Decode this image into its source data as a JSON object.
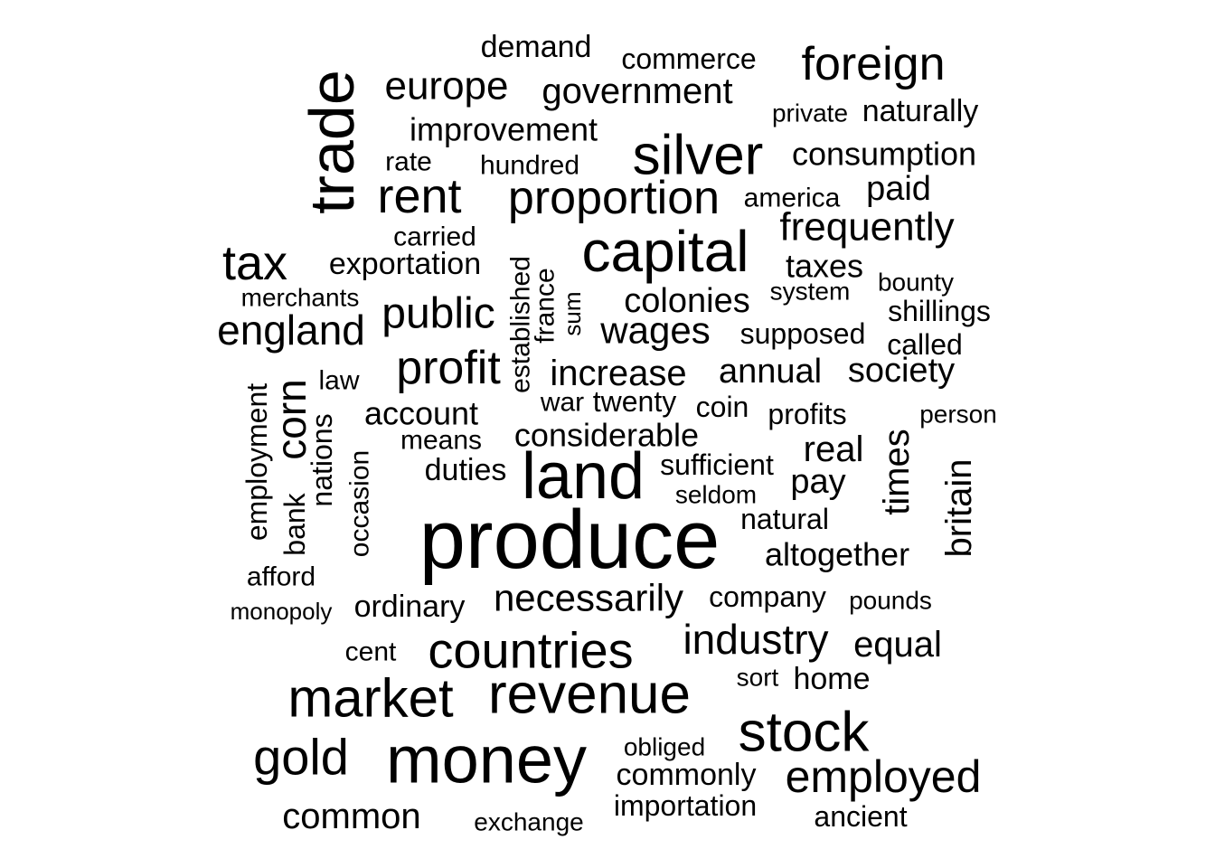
{
  "words": [
    {
      "text": "produce",
      "size": 92
    },
    {
      "text": "money",
      "size": 74
    },
    {
      "text": "land",
      "size": 72
    },
    {
      "text": "trade",
      "size": 70,
      "vertical": true
    },
    {
      "text": "capital",
      "size": 64
    },
    {
      "text": "revenue",
      "size": 62
    },
    {
      "text": "silver",
      "size": 62
    },
    {
      "text": "stock",
      "size": 62
    },
    {
      "text": "market",
      "size": 60
    },
    {
      "text": "countries",
      "size": 56
    },
    {
      "text": "gold",
      "size": 56
    },
    {
      "text": "tax",
      "size": 54
    },
    {
      "text": "rent",
      "size": 54
    },
    {
      "text": "proportion",
      "size": 52
    },
    {
      "text": "profit",
      "size": 52
    },
    {
      "text": "foreign",
      "size": 52
    },
    {
      "text": "employed",
      "size": 50
    },
    {
      "text": "public",
      "size": 48
    },
    {
      "text": "corn",
      "size": 46,
      "vertical": true
    },
    {
      "text": "england",
      "size": 46
    },
    {
      "text": "industry",
      "size": 46
    },
    {
      "text": "europe",
      "size": 44
    },
    {
      "text": "frequently",
      "size": 44
    },
    {
      "text": "necessarily",
      "size": 42
    },
    {
      "text": "wages",
      "size": 42
    },
    {
      "text": "government",
      "size": 40
    },
    {
      "text": "increase",
      "size": 40
    },
    {
      "text": "britain",
      "size": 40,
      "vertical": true
    },
    {
      "text": "times",
      "size": 40,
      "vertical": true
    },
    {
      "text": "real",
      "size": 40
    },
    {
      "text": "common",
      "size": 40
    },
    {
      "text": "equal",
      "size": 40
    },
    {
      "text": "society",
      "size": 38
    },
    {
      "text": "colonies",
      "size": 38
    },
    {
      "text": "annual",
      "size": 38
    },
    {
      "text": "improvement",
      "size": 36
    },
    {
      "text": "account",
      "size": 36
    },
    {
      "text": "considerable",
      "size": 36
    },
    {
      "text": "paid",
      "size": 38
    },
    {
      "text": "pay",
      "size": 38
    },
    {
      "text": "altogether",
      "size": 36
    },
    {
      "text": "consumption",
      "size": 36
    },
    {
      "text": "taxes",
      "size": 36
    },
    {
      "text": "exportation",
      "size": 34
    },
    {
      "text": "duties",
      "size": 34
    },
    {
      "text": "demand",
      "size": 34
    },
    {
      "text": "ordinary",
      "size": 34
    },
    {
      "text": "home",
      "size": 34
    },
    {
      "text": "naturally",
      "size": 34
    },
    {
      "text": "commonly",
      "size": 34
    },
    {
      "text": "employment",
      "size": 32,
      "vertical": true
    },
    {
      "text": "nations",
      "size": 32,
      "vertical": true
    },
    {
      "text": "bank",
      "size": 32,
      "vertical": true
    },
    {
      "text": "occasion",
      "size": 30,
      "vertical": true
    },
    {
      "text": "established",
      "size": 30,
      "vertical": true
    },
    {
      "text": "france",
      "size": 30,
      "vertical": true
    },
    {
      "text": "commerce",
      "size": 32
    },
    {
      "text": "supposed",
      "size": 32
    },
    {
      "text": "profits",
      "size": 32
    },
    {
      "text": "coin",
      "size": 32
    },
    {
      "text": "twenty",
      "size": 32
    },
    {
      "text": "sufficient",
      "size": 32
    },
    {
      "text": "natural",
      "size": 32
    },
    {
      "text": "company",
      "size": 32
    },
    {
      "text": "importation",
      "size": 32
    },
    {
      "text": "shillings",
      "size": 32
    },
    {
      "text": "called",
      "size": 32
    },
    {
      "text": "cent",
      "size": 30
    },
    {
      "text": "carried",
      "size": 30
    },
    {
      "text": "hundred",
      "size": 30
    },
    {
      "text": "afford",
      "size": 30
    },
    {
      "text": "means",
      "size": 30
    },
    {
      "text": "rate",
      "size": 30
    },
    {
      "text": "america",
      "size": 30
    },
    {
      "text": "law",
      "size": 30
    },
    {
      "text": "war",
      "size": 30
    },
    {
      "text": "obliged",
      "size": 28
    },
    {
      "text": "merchants",
      "size": 28
    },
    {
      "text": "seldom",
      "size": 28
    },
    {
      "text": "exchange",
      "size": 28
    },
    {
      "text": "pounds",
      "size": 28
    },
    {
      "text": "private",
      "size": 28
    },
    {
      "text": "sort",
      "size": 28
    },
    {
      "text": "ancient",
      "size": 32
    },
    {
      "text": "system",
      "size": 28
    },
    {
      "text": "bounty",
      "size": 28
    },
    {
      "text": "person",
      "size": 28
    },
    {
      "text": "monopoly",
      "size": 26
    },
    {
      "text": "sum",
      "size": 26,
      "vertical": true
    }
  ]
}
